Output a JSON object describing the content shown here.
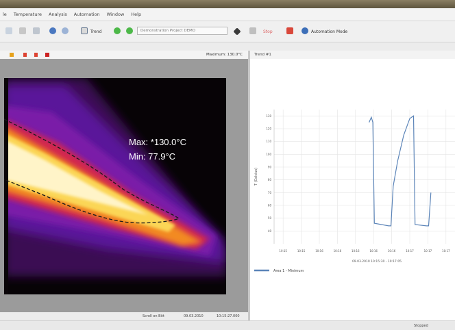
{
  "window": {
    "title": ""
  },
  "menu": {
    "items": [
      "le",
      "Temperature",
      "Analysis",
      "Automation",
      "Window",
      "Help"
    ]
  },
  "toolbar": {
    "trend_label": "Trend",
    "device_dropdown": "Demonstration Project DEMO",
    "stop_label": "Stop",
    "automation_label": "Automation Mode"
  },
  "thermal": {
    "toolbar_left": "",
    "max_readout": "Maximum: 130.0°C",
    "overlay_max": "Max: *130.0°C",
    "overlay_min": "Min:  77.9°C",
    "status": [
      "Scroll on Bitt",
      "09.03.2010",
      "10:15:27.000"
    ]
  },
  "trend": {
    "tab_label": "Trend #1",
    "legend_label": "Area 1 - Minimum",
    "status": "Stopped"
  },
  "chart_data": {
    "type": "line",
    "title": "",
    "ylabel": "T (Celsius)",
    "xlabel": "09.03.2010 10:15:30 - 10:17:05",
    "ylim": [
      30,
      135
    ],
    "xlim": [
      0,
      12
    ],
    "y_ticks": [
      "40",
      "50",
      "60",
      "70",
      "80",
      "90",
      "100",
      "110",
      "120",
      "130"
    ],
    "x_ticks": [
      "10:15",
      "10:15",
      "10:16",
      "10:16",
      "10:16",
      "10:16",
      "10:16",
      "10:17",
      "10:17",
      "10:17"
    ],
    "series": [
      {
        "name": "Area 1 - Minimum",
        "color": "#5b84b8",
        "x": [
          6.3,
          6.45,
          6.55,
          6.65,
          7.6,
          7.75,
          7.9,
          8.2,
          8.6,
          9.0,
          9.25,
          9.35,
          10.1,
          10.25,
          10.4
        ],
        "y": [
          125,
          129,
          125,
          46,
          44,
          44,
          75,
          95,
          115,
          128,
          130,
          45,
          44,
          44,
          70
        ]
      }
    ]
  },
  "colors": {
    "accent": "#5b84b8",
    "background": "#ececec"
  }
}
